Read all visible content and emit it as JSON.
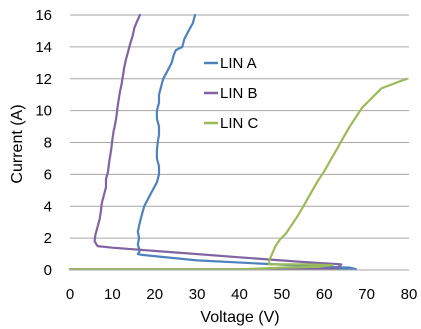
{
  "chart_data": {
    "type": "line",
    "title": "",
    "xlabel": "Voltage (V)",
    "ylabel": "Current (A)",
    "xlim": [
      0,
      80
    ],
    "ylim": [
      0,
      16
    ],
    "x_ticks": [
      0,
      10,
      20,
      30,
      40,
      50,
      60,
      70,
      80
    ],
    "y_ticks": [
      0,
      2,
      4,
      6,
      8,
      10,
      12,
      14,
      16
    ],
    "grid": "horizontal",
    "legend_position": "center",
    "series": [
      {
        "name": "LIN A",
        "color": "#4f81bd",
        "points": [
          [
            0,
            0.05
          ],
          [
            30,
            0.05
          ],
          [
            50,
            0.05
          ],
          [
            67.5,
            0.05
          ],
          [
            66,
            0.15
          ],
          [
            60,
            0.2
          ],
          [
            45,
            0.4
          ],
          [
            30,
            0.6
          ],
          [
            17,
            0.95
          ],
          [
            16,
            1.0
          ],
          [
            16.5,
            1.2
          ],
          [
            16,
            1.6
          ],
          [
            16.3,
            2.0
          ],
          [
            16,
            2.4
          ],
          [
            16.5,
            3.0
          ],
          [
            17,
            3.5
          ],
          [
            17.5,
            4.0
          ],
          [
            18.5,
            4.5
          ],
          [
            19.5,
            5.0
          ],
          [
            20.5,
            5.5
          ],
          [
            21,
            6.0
          ],
          [
            21,
            6.5
          ],
          [
            20.5,
            7.0
          ],
          [
            20.5,
            7.5
          ],
          [
            20.7,
            8.0
          ],
          [
            21,
            8.5
          ],
          [
            21,
            9.0
          ],
          [
            20.5,
            9.5
          ],
          [
            20.5,
            10.0
          ],
          [
            21,
            10.5
          ],
          [
            21,
            11.0
          ],
          [
            21.5,
            11.5
          ],
          [
            22,
            12.0
          ],
          [
            23,
            12.5
          ],
          [
            24,
            13.0
          ],
          [
            24.5,
            13.5
          ],
          [
            25,
            13.8
          ],
          [
            26.5,
            14.0
          ],
          [
            27,
            14.5
          ],
          [
            28,
            15.0
          ],
          [
            29,
            15.5
          ],
          [
            29.5,
            16.0
          ]
        ]
      },
      {
        "name": "LIN B",
        "color": "#8064a2",
        "points": [
          [
            0,
            0.05
          ],
          [
            30,
            0.05
          ],
          [
            50,
            0.05
          ],
          [
            60,
            0.08
          ],
          [
            63,
            0.1
          ],
          [
            64,
            0.35
          ],
          [
            55,
            0.5
          ],
          [
            40,
            0.8
          ],
          [
            25,
            1.1
          ],
          [
            10,
            1.4
          ],
          [
            6.5,
            1.5
          ],
          [
            5.8,
            1.8
          ],
          [
            6,
            2.2
          ],
          [
            6.5,
            2.7
          ],
          [
            7,
            3.2
          ],
          [
            7.3,
            3.7
          ],
          [
            7.5,
            4.2
          ],
          [
            8,
            4.7
          ],
          [
            8.5,
            5.2
          ],
          [
            8.5,
            5.7
          ],
          [
            9,
            6.2
          ],
          [
            9.2,
            6.7
          ],
          [
            9.5,
            7.2
          ],
          [
            9.8,
            7.7
          ],
          [
            10,
            8.2
          ],
          [
            10.3,
            8.7
          ],
          [
            10.7,
            9.2
          ],
          [
            11,
            9.7
          ],
          [
            11.2,
            10.2
          ],
          [
            11.5,
            10.7
          ],
          [
            11.8,
            11.2
          ],
          [
            12.2,
            11.7
          ],
          [
            12.5,
            12.2
          ],
          [
            12.8,
            12.7
          ],
          [
            13.2,
            13.2
          ],
          [
            13.7,
            13.7
          ],
          [
            14.2,
            14.2
          ],
          [
            14.8,
            14.7
          ],
          [
            15.2,
            15.2
          ],
          [
            15.8,
            15.6
          ],
          [
            16.5,
            16.0
          ]
        ]
      },
      {
        "name": "LIN C",
        "color": "#9bbb59",
        "points": [
          [
            0,
            0.05
          ],
          [
            20,
            0.05
          ],
          [
            40,
            0.05
          ],
          [
            46,
            0.1
          ],
          [
            50,
            0.15
          ],
          [
            58,
            0.2
          ],
          [
            62,
            0.3
          ],
          [
            55,
            0.35
          ],
          [
            47,
            0.35
          ],
          [
            47,
            0.6
          ],
          [
            47.5,
            0.9
          ],
          [
            48,
            1.2
          ],
          [
            48.5,
            1.5
          ],
          [
            49.5,
            1.9
          ],
          [
            51,
            2.3
          ],
          [
            52.5,
            2.9
          ],
          [
            54,
            3.5
          ],
          [
            55.5,
            4.2
          ],
          [
            57,
            4.9
          ],
          [
            58.5,
            5.6
          ],
          [
            60,
            6.2
          ],
          [
            61.5,
            6.9
          ],
          [
            63,
            7.6
          ],
          [
            64.5,
            8.3
          ],
          [
            66,
            9.0
          ],
          [
            67.5,
            9.6
          ],
          [
            69,
            10.2
          ],
          [
            70.5,
            10.6
          ],
          [
            72,
            11.0
          ],
          [
            73.5,
            11.4
          ],
          [
            75.5,
            11.6
          ],
          [
            77.5,
            11.8
          ],
          [
            79.5,
            12.0
          ]
        ]
      }
    ]
  }
}
